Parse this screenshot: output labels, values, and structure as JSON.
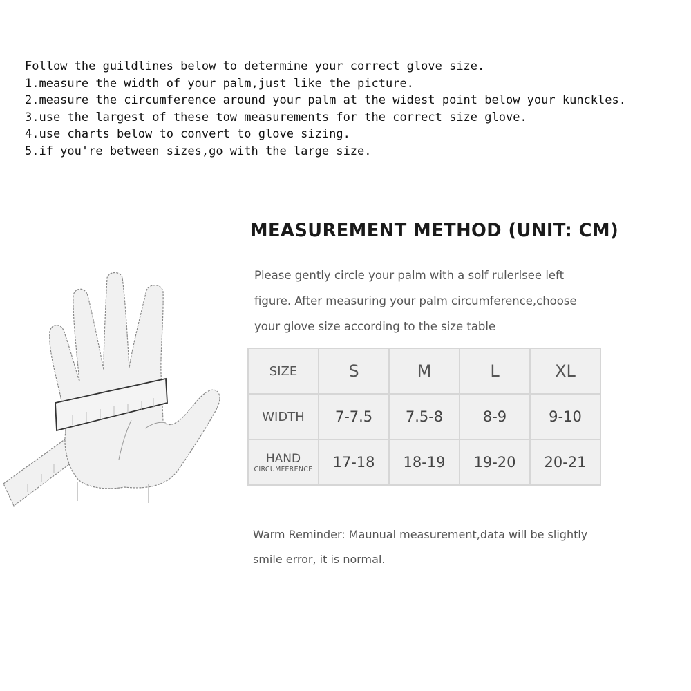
{
  "guidelines": [
    "Follow the guildlines below to determine your correct glove size.",
    "1.measure the width of your palm,just like the picture.",
    "2.measure the circumference around your palm at the widest point below your kunckles.",
    "3.use the largest of these tow measurements for the correct size glove.",
    "4.use charts below to convert to glove sizing.",
    "5.if you're between sizes,go with the large size."
  ],
  "title": "MEASUREMENT METHOD (UNIT: CM)",
  "description": [
    "Please gently circle your palm with a solf rulerlsee left",
    "figure. After measuring your palm circumference,choose",
    "your glove size according to the size table"
  ],
  "size_table": {
    "header": {
      "label": "SIZE",
      "sizes": [
        "S",
        "M",
        "L",
        "XL"
      ]
    },
    "rows": [
      {
        "label": "WIDTH",
        "values": [
          "7-7.5",
          "7.5-8",
          "8-9",
          "9-10"
        ]
      },
      {
        "label": "HAND",
        "sublabel": "CIRCUMFERENCE",
        "values": [
          "17-18",
          "18-19",
          "19-20",
          "20-21"
        ]
      }
    ]
  },
  "reminder": [
    "Warm Reminder: Maunual measurement,data will be slightly",
    "smile error, it is normal."
  ],
  "illustration": {
    "icon": "hand-measuring-tape-icon"
  }
}
